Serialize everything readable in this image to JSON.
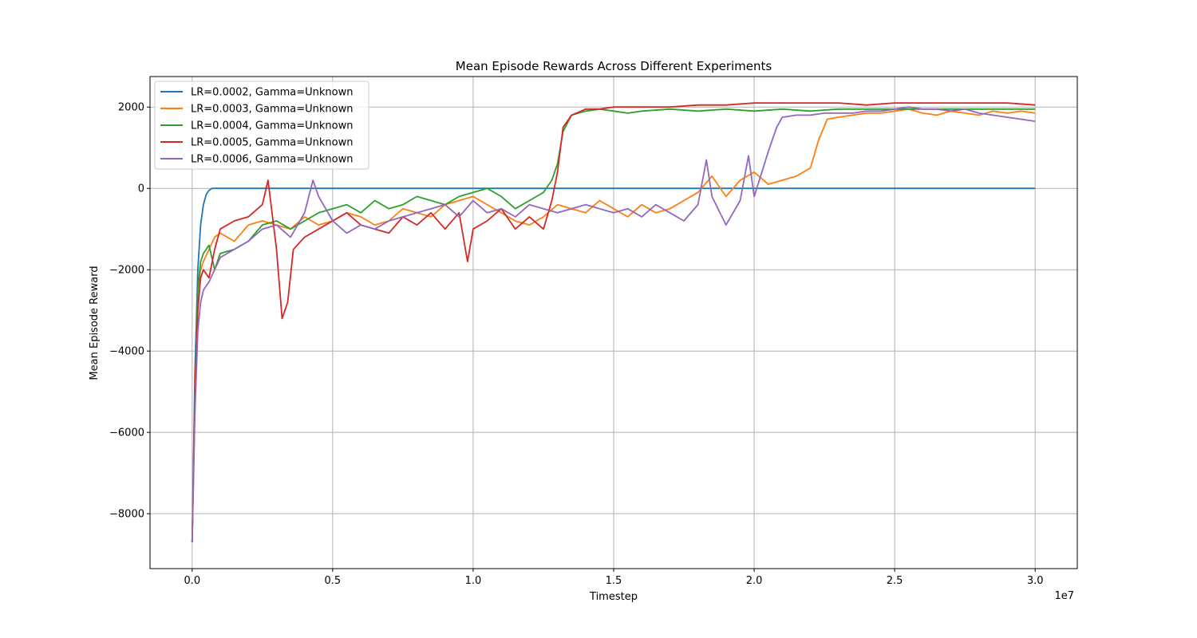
{
  "chart_data": {
    "type": "line",
    "title": "Mean Episode Rewards Across Different Experiments",
    "xlabel": "Timestep",
    "ylabel": "Mean Episode Reward",
    "x_offset_label": "1e7",
    "xlim": [
      -1500000,
      31500000
    ],
    "ylim": [
      -9350,
      2750
    ],
    "x_ticks": [
      0,
      5000000,
      10000000,
      15000000,
      20000000,
      25000000,
      30000000
    ],
    "x_tick_labels": [
      "0.0",
      "0.5",
      "1.0",
      "1.5",
      "2.0",
      "2.5",
      "3.0"
    ],
    "y_ticks": [
      -8000,
      -6000,
      -4000,
      -2000,
      0,
      2000
    ],
    "y_tick_labels": [
      "−8000",
      "−6000",
      "−4000",
      "−2000",
      "0",
      "2000"
    ],
    "grid": true,
    "legend_position": "upper-left",
    "series": [
      {
        "name": "LR=0.0002, Gamma=Unknown",
        "color": "#1f77b4",
        "x": [
          0,
          100000,
          200000,
          300000,
          400000,
          500000,
          600000,
          700000,
          1000000,
          5000000,
          10000000,
          15000000,
          20000000,
          25000000,
          30000000
        ],
        "y": [
          -8700,
          -4500,
          -2000,
          -900,
          -400,
          -150,
          -50,
          0,
          0,
          0,
          0,
          0,
          0,
          0,
          0
        ]
      },
      {
        "name": "LR=0.0003, Gamma=Unknown",
        "color": "#ff7f0e",
        "x": [
          0,
          100000,
          200000,
          300000,
          400000,
          600000,
          800000,
          1000000,
          1500000,
          2000000,
          2500000,
          3000000,
          3500000,
          4000000,
          4500000,
          5000000,
          5500000,
          6000000,
          6500000,
          7000000,
          7500000,
          8000000,
          8500000,
          9000000,
          9500000,
          10000000,
          10500000,
          11000000,
          11500000,
          12000000,
          12500000,
          13000000,
          13500000,
          14000000,
          14500000,
          15000000,
          15500000,
          16000000,
          16500000,
          17000000,
          17500000,
          18000000,
          18500000,
          19000000,
          19500000,
          20000000,
          20500000,
          21000000,
          21500000,
          22000000,
          22300000,
          22600000,
          23000000,
          23500000,
          24000000,
          24500000,
          25000000,
          25500000,
          26000000,
          26500000,
          27000000,
          27500000,
          28000000,
          28500000,
          29000000,
          29500000,
          30000000
        ],
        "y": [
          -8700,
          -5000,
          -2500,
          -2000,
          -1800,
          -1500,
          -1200,
          -1100,
          -1300,
          -900,
          -800,
          -900,
          -1000,
          -700,
          -900,
          -800,
          -600,
          -700,
          -900,
          -800,
          -500,
          -600,
          -700,
          -400,
          -300,
          -200,
          -400,
          -600,
          -800,
          -900,
          -700,
          -400,
          -500,
          -600,
          -300,
          -500,
          -700,
          -400,
          -600,
          -500,
          -300,
          -100,
          300,
          -200,
          200,
          400,
          100,
          200,
          300,
          500,
          1200,
          1700,
          1750,
          1800,
          1850,
          1850,
          1900,
          1950,
          1850,
          1800,
          1900,
          1850,
          1800,
          1900,
          1850,
          1900,
          1850
        ]
      },
      {
        "name": "LR=0.0004, Gamma=Unknown",
        "color": "#2ca02c",
        "x": [
          0,
          100000,
          200000,
          300000,
          400000,
          600000,
          800000,
          1000000,
          1500000,
          2000000,
          2500000,
          3000000,
          3500000,
          4000000,
          4500000,
          5000000,
          5500000,
          6000000,
          6500000,
          7000000,
          7500000,
          8000000,
          8500000,
          9000000,
          9500000,
          10000000,
          10500000,
          11000000,
          11500000,
          12000000,
          12500000,
          12800000,
          13000000,
          13200000,
          13500000,
          14000000,
          14500000,
          15000000,
          15500000,
          16000000,
          17000000,
          18000000,
          19000000,
          20000000,
          21000000,
          22000000,
          23000000,
          24000000,
          25000000,
          26000000,
          27000000,
          28000000,
          29000000,
          30000000
        ],
        "y": [
          -8700,
          -5000,
          -2500,
          -1800,
          -1600,
          -1400,
          -2000,
          -1600,
          -1500,
          -1300,
          -900,
          -800,
          -1000,
          -800,
          -600,
          -500,
          -400,
          -600,
          -300,
          -500,
          -400,
          -200,
          -300,
          -400,
          -200,
          -100,
          0,
          -200,
          -500,
          -300,
          -100,
          200,
          600,
          1400,
          1800,
          1900,
          1950,
          1900,
          1850,
          1900,
          1950,
          1900,
          1950,
          1900,
          1950,
          1900,
          1950,
          1950,
          1950,
          1950,
          1950,
          1950,
          1950,
          1950
        ]
      },
      {
        "name": "LR=0.0005, Gamma=Unknown",
        "color": "#d62728",
        "x": [
          0,
          100000,
          200000,
          300000,
          400000,
          600000,
          800000,
          1000000,
          1500000,
          2000000,
          2500000,
          2700000,
          3000000,
          3200000,
          3400000,
          3600000,
          4000000,
          4500000,
          5000000,
          5500000,
          6000000,
          6500000,
          7000000,
          7500000,
          8000000,
          8500000,
          9000000,
          9500000,
          9800000,
          10000000,
          10500000,
          11000000,
          11500000,
          12000000,
          12500000,
          12800000,
          13000000,
          13200000,
          13500000,
          14000000,
          14500000,
          15000000,
          16000000,
          17000000,
          18000000,
          19000000,
          20000000,
          21000000,
          22000000,
          23000000,
          24000000,
          25000000,
          26000000,
          27000000,
          28000000,
          29000000,
          30000000
        ],
        "y": [
          -8700,
          -5000,
          -3000,
          -2200,
          -2000,
          -2200,
          -1500,
          -1000,
          -800,
          -700,
          -400,
          200,
          -1500,
          -3200,
          -2800,
          -1500,
          -1200,
          -1000,
          -800,
          -600,
          -900,
          -1000,
          -1100,
          -700,
          -900,
          -600,
          -1000,
          -600,
          -1800,
          -1000,
          -800,
          -500,
          -1000,
          -700,
          -1000,
          -300,
          400,
          1500,
          1800,
          1950,
          1950,
          2000,
          2000,
          2000,
          2050,
          2050,
          2100,
          2100,
          2100,
          2100,
          2050,
          2100,
          2100,
          2100,
          2100,
          2100,
          2050
        ]
      },
      {
        "name": "LR=0.0006, Gamma=Unknown",
        "color": "#9467bd",
        "x": [
          0,
          100000,
          200000,
          300000,
          400000,
          600000,
          800000,
          1000000,
          1500000,
          2000000,
          2500000,
          3000000,
          3500000,
          4000000,
          4300000,
          4500000,
          5000000,
          5500000,
          6000000,
          6500000,
          7000000,
          7500000,
          8000000,
          8500000,
          9000000,
          9500000,
          10000000,
          10500000,
          11000000,
          11500000,
          12000000,
          12500000,
          13000000,
          13500000,
          14000000,
          14500000,
          15000000,
          15500000,
          16000000,
          16500000,
          17000000,
          17500000,
          18000000,
          18300000,
          18500000,
          19000000,
          19500000,
          19800000,
          20000000,
          20500000,
          20800000,
          21000000,
          21500000,
          22000000,
          22500000,
          23000000,
          23500000,
          24000000,
          24500000,
          25000000,
          25500000,
          26000000,
          26500000,
          27000000,
          27500000,
          28000000,
          28500000,
          29000000,
          29500000,
          30000000
        ],
        "y": [
          -8700,
          -5500,
          -3500,
          -2800,
          -2500,
          -2300,
          -2000,
          -1700,
          -1500,
          -1300,
          -1000,
          -900,
          -1200,
          -600,
          200,
          -200,
          -800,
          -1100,
          -900,
          -1000,
          -800,
          -700,
          -600,
          -500,
          -400,
          -700,
          -300,
          -600,
          -500,
          -700,
          -400,
          -500,
          -600,
          -500,
          -400,
          -500,
          -600,
          -500,
          -700,
          -400,
          -600,
          -800,
          -400,
          700,
          -200,
          -900,
          -300,
          800,
          -200,
          900,
          1500,
          1750,
          1800,
          1800,
          1850,
          1850,
          1850,
          1900,
          1900,
          1950,
          2000,
          1950,
          1950,
          1900,
          1950,
          1850,
          1800,
          1750,
          1700,
          1650
        ]
      }
    ]
  }
}
